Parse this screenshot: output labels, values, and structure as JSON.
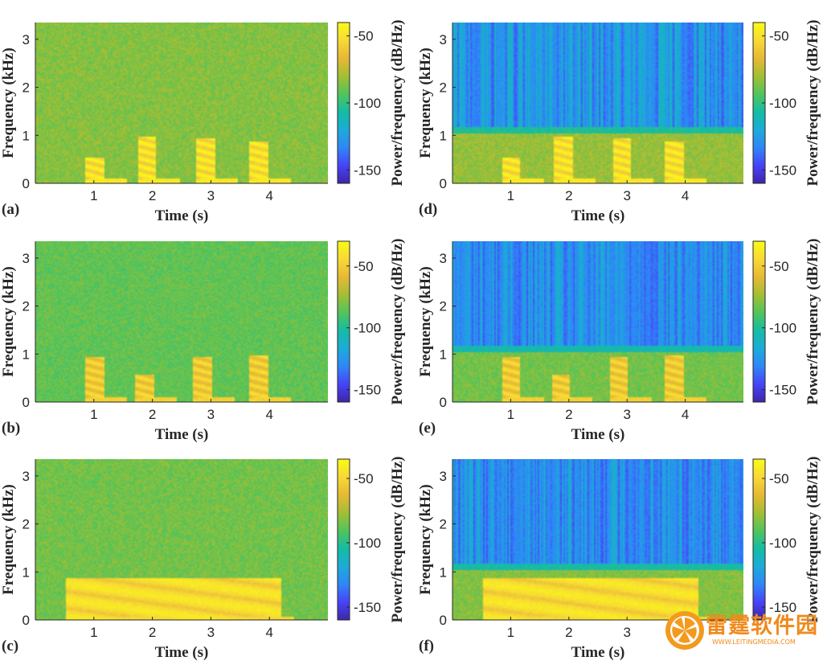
{
  "chart_data": [
    {
      "panel": "(a)",
      "type": "heatmap",
      "denoised": false,
      "xlabel": "Time (s)",
      "ylabel": "Frequency (kHz)",
      "colorbar_label": "Power/frequency (dB/Hz)",
      "x_ticks": [
        1,
        2,
        3,
        4
      ],
      "y_ticks": [
        0,
        1,
        2,
        3
      ],
      "colorbar_ticks": [
        -50,
        -100,
        -150
      ],
      "xlim": [
        0,
        5
      ],
      "ylim": [
        0,
        3.35
      ],
      "clim": [
        -160,
        -40
      ],
      "background_level_db": -85,
      "events": [
        {
          "t": 1.0,
          "fmax": 0.55
        },
        {
          "t": 1.9,
          "fmax": 1.0
        },
        {
          "t": 2.9,
          "fmax": 0.95
        },
        {
          "t": 3.8,
          "fmax": 0.9
        }
      ]
    },
    {
      "panel": "(b)",
      "type": "heatmap",
      "denoised": false,
      "xlabel": "Time (s)",
      "ylabel": "Frequency (kHz)",
      "colorbar_label": "Power/frequency (dB/Hz)",
      "x_ticks": [
        1,
        2,
        3,
        4
      ],
      "y_ticks": [
        0,
        1,
        2,
        3
      ],
      "colorbar_ticks": [
        -50,
        -100,
        -150
      ],
      "xlim": [
        0,
        5
      ],
      "ylim": [
        0,
        3.35
      ],
      "clim": [
        -160,
        -30
      ],
      "background_level_db": -85,
      "events": [
        {
          "t": 1.0,
          "fmax": 0.95
        },
        {
          "t": 1.85,
          "fmax": 0.6
        },
        {
          "t": 2.85,
          "fmax": 0.95
        },
        {
          "t": 3.8,
          "fmax": 1.0
        }
      ]
    },
    {
      "panel": "(c)",
      "type": "heatmap",
      "denoised": false,
      "xlabel": "Time (s)",
      "ylabel": "Frequency (kHz)",
      "colorbar_label": "Power/frequency (dB/Hz)",
      "x_ticks": [
        1,
        2,
        3,
        4
      ],
      "y_ticks": [
        0,
        1,
        2,
        3
      ],
      "colorbar_ticks": [
        -50,
        -100,
        -150
      ],
      "xlim": [
        0,
        5
      ],
      "ylim": [
        0,
        3.35
      ],
      "clim": [
        -160,
        -35
      ],
      "background_level_db": -85,
      "events": [
        {
          "t_start": 0.5,
          "t_end": 4.2,
          "fmax": 0.9
        }
      ]
    },
    {
      "panel": "(d)",
      "type": "heatmap",
      "denoised": true,
      "xlabel": "Time (s)",
      "ylabel": "Frequency (kHz)",
      "colorbar_label": "Power/frequency (dB/Hz)",
      "x_ticks": [
        1,
        2,
        3,
        4
      ],
      "y_ticks": [
        0,
        1,
        2,
        3
      ],
      "colorbar_ticks": [
        -50,
        -100,
        -150
      ],
      "xlim": [
        0,
        5
      ],
      "ylim": [
        0,
        3.35
      ],
      "clim": [
        -160,
        -40
      ],
      "cutoff_khz": 1.2,
      "events": [
        {
          "t": 1.0,
          "fmax": 0.55
        },
        {
          "t": 1.9,
          "fmax": 1.0
        },
        {
          "t": 2.9,
          "fmax": 0.95
        },
        {
          "t": 3.8,
          "fmax": 0.9
        }
      ]
    },
    {
      "panel": "(e)",
      "type": "heatmap",
      "denoised": true,
      "xlabel": "Time (s)",
      "ylabel": "Frequency (kHz)",
      "colorbar_label": "Power/frequency (dB/Hz)",
      "x_ticks": [
        1,
        2,
        3,
        4
      ],
      "y_ticks": [
        0,
        1,
        2,
        3
      ],
      "colorbar_ticks": [
        -50,
        -100,
        -150
      ],
      "xlim": [
        0,
        5
      ],
      "ylim": [
        0,
        3.35
      ],
      "clim": [
        -160,
        -30
      ],
      "cutoff_khz": 1.2,
      "events": [
        {
          "t": 1.0,
          "fmax": 0.95
        },
        {
          "t": 1.85,
          "fmax": 0.6
        },
        {
          "t": 2.85,
          "fmax": 0.95
        },
        {
          "t": 3.8,
          "fmax": 1.0
        }
      ]
    },
    {
      "panel": "(f)",
      "type": "heatmap",
      "denoised": true,
      "xlabel": "Time (s)",
      "ylabel": "Frequency (kHz)",
      "colorbar_label": "Power/frequency (dB/Hz)",
      "x_ticks": [
        1,
        2,
        3,
        4
      ],
      "y_ticks": [
        0,
        1,
        2,
        3
      ],
      "colorbar_ticks": [
        -50,
        -100,
        -150
      ],
      "xlim": [
        0,
        5
      ],
      "ylim": [
        0,
        3.35
      ],
      "clim": [
        -160,
        -35
      ],
      "cutoff_khz": 1.2,
      "events": [
        {
          "t_start": 0.5,
          "t_end": 4.2,
          "fmax": 0.9
        }
      ]
    }
  ],
  "colormap": [
    "#3e26a8",
    "#4743f8",
    "#2e87f7",
    "#1cabd8",
    "#14bca4",
    "#52c45a",
    "#a4be33",
    "#e7b934",
    "#f8d936",
    "#f9fb15"
  ],
  "watermark": {
    "text": "雷霆软件园",
    "subtext": "WWW.LEITINGMEDIA.COM"
  }
}
